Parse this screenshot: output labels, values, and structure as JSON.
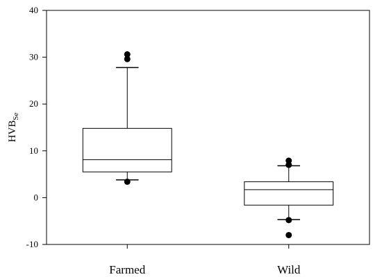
{
  "chart_data": {
    "type": "box",
    "title": "",
    "xlabel": "",
    "ylabel": "HVB",
    "ylabel_subscript": "Se",
    "ylim": [
      -10,
      40
    ],
    "yticks": [
      -10,
      0,
      10,
      20,
      30,
      40
    ],
    "categories": [
      "Farmed",
      "Wild"
    ],
    "boxes": [
      {
        "category": "Farmed",
        "whisker_low": 3.8,
        "q1": 5.5,
        "median": 8.1,
        "q3": 14.8,
        "whisker_high": 27.8,
        "outliers": [
          3.4,
          29.6,
          30.6
        ]
      },
      {
        "category": "Wild",
        "whisker_low": -4.7,
        "q1": -1.6,
        "median": 1.7,
        "q3": 3.4,
        "whisker_high": 6.8,
        "outliers": [
          -8.0,
          -4.8,
          7.0,
          7.9
        ]
      }
    ],
    "grid": false,
    "legend": "none"
  }
}
